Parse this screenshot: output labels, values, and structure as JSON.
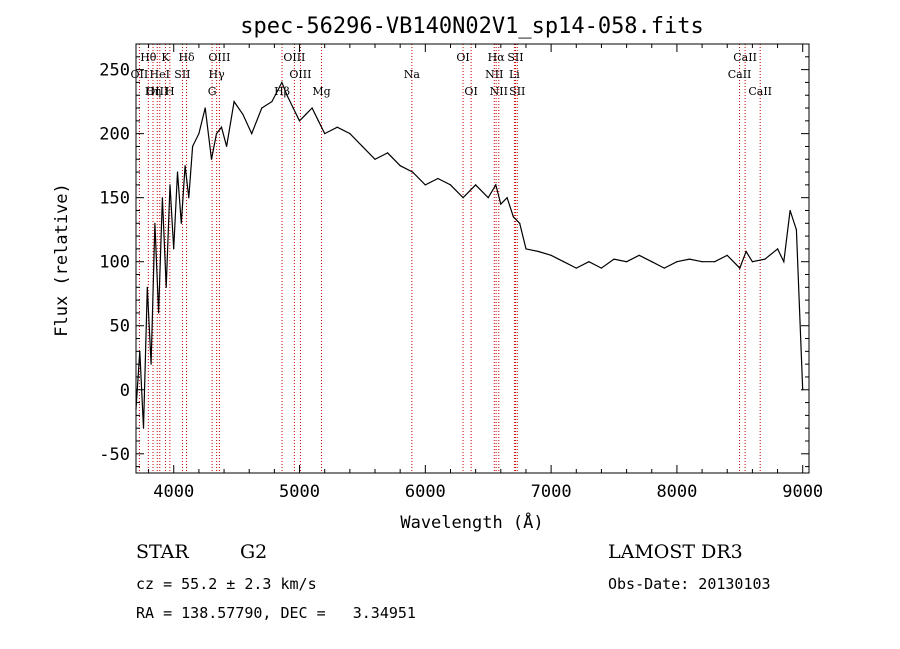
{
  "chart_data": {
    "type": "line",
    "title": "spec-56296-VB140N02V1_sp14-058.fits",
    "xlabel": "Wavelength (Å)",
    "ylabel": "Flux (relative)",
    "xlim": [
      3700,
      9050
    ],
    "ylim": [
      -65,
      270
    ],
    "x_ticks": [
      4000,
      5000,
      6000,
      7000,
      8000,
      9000
    ],
    "y_ticks": [
      -50,
      0,
      50,
      100,
      150,
      200,
      250
    ],
    "x_tick_labels": [
      "4000",
      "5000",
      "6000",
      "7000",
      "8000",
      "9000"
    ],
    "y_tick_labels": [
      "-50",
      "0",
      "50",
      "100",
      "150",
      "200",
      "250"
    ],
    "series": [
      {
        "x": [
          3700,
          3730,
          3760,
          3790,
          3820,
          3850,
          3880,
          3910,
          3940,
          3970,
          4000,
          4030,
          4060,
          4090,
          4120,
          4150,
          4200,
          4250,
          4300,
          4340,
          4380,
          4420,
          4480,
          4550,
          4620,
          4700,
          4780,
          4860,
          4900,
          4950,
          5000,
          5050,
          5100,
          5150,
          5200,
          5300,
          5400,
          5500,
          5600,
          5700,
          5800,
          5900,
          6000,
          6100,
          6200,
          6300,
          6400,
          6500,
          6560,
          6600,
          6650,
          6700,
          6750,
          6800,
          6900,
          7000,
          7100,
          7200,
          7300,
          7400,
          7500,
          7600,
          7700,
          7800,
          7900,
          8000,
          8100,
          8200,
          8300,
          8400,
          8500,
          8550,
          8600,
          8700,
          8800,
          8850,
          8900,
          8950,
          9000
        ],
        "y": [
          -15,
          30,
          -30,
          80,
          20,
          130,
          60,
          150,
          80,
          160,
          110,
          170,
          130,
          175,
          150,
          190,
          200,
          220,
          180,
          200,
          205,
          190,
          225,
          215,
          200,
          220,
          225,
          240,
          230,
          220,
          210,
          215,
          220,
          210,
          200,
          205,
          200,
          190,
          180,
          185,
          175,
          170,
          160,
          165,
          160,
          150,
          160,
          150,
          160,
          145,
          150,
          135,
          130,
          110,
          108,
          105,
          100,
          95,
          100,
          95,
          102,
          100,
          105,
          100,
          95,
          100,
          102,
          100,
          100,
          105,
          95,
          108,
          100,
          102,
          110,
          100,
          140,
          125,
          0
        ],
        "color": "#000000"
      }
    ],
    "lines_color": "#cc0000",
    "spectral_lines": [
      {
        "name": "Hθ",
        "wl": 3798,
        "row": 0
      },
      {
        "name": "OII",
        "wl": 3727,
        "row": 1
      },
      {
        "name": "OIII",
        "wl": 3869,
        "row": 2
      },
      {
        "name": "Hη",
        "wl": 3835,
        "row": 2
      },
      {
        "name": "HeI",
        "wl": 3889,
        "row": 1
      },
      {
        "name": "K",
        "wl": 3934,
        "row": 0
      },
      {
        "name": "H",
        "wl": 3969,
        "row": 2
      },
      {
        "name": "Hδ",
        "wl": 4102,
        "row": 0
      },
      {
        "name": "SII",
        "wl": 4069,
        "row": 1
      },
      {
        "name": "OIII",
        "wl": 4363,
        "row": 0
      },
      {
        "name": "Hγ",
        "wl": 4341,
        "row": 1
      },
      {
        "name": "G",
        "wl": 4305,
        "row": 2
      },
      {
        "name": "OIII",
        "wl": 4959,
        "row": 0
      },
      {
        "name": "OIII",
        "wl": 5007,
        "row": 1
      },
      {
        "name": "Hβ",
        "wl": 4861,
        "row": 2
      },
      {
        "name": "Mg",
        "wl": 5175,
        "row": 2
      },
      {
        "name": "Na",
        "wl": 5893,
        "row": 1
      },
      {
        "name": "OI",
        "wl": 6300,
        "row": 0
      },
      {
        "name": "OI",
        "wl": 6364,
        "row": 2
      },
      {
        "name": "Hα",
        "wl": 6563,
        "row": 0
      },
      {
        "name": "SII",
        "wl": 6717,
        "row": 0
      },
      {
        "name": "NII",
        "wl": 6548,
        "row": 1
      },
      {
        "name": "Li",
        "wl": 6708,
        "row": 1
      },
      {
        "name": "NII",
        "wl": 6584,
        "row": 2
      },
      {
        "name": "SII",
        "wl": 6731,
        "row": 2
      },
      {
        "name": "CaII",
        "wl": 8542,
        "row": 0
      },
      {
        "name": "CaII",
        "wl": 8498,
        "row": 1
      },
      {
        "name": "CaII",
        "wl": 8662,
        "row": 2
      }
    ]
  },
  "info": {
    "object_type": "STAR",
    "subclass": "G2",
    "survey": "LAMOST DR3",
    "redshift": "cz = 55.2 ± 2.3 km/s",
    "obs_date": "Obs-Date: 20130103",
    "coords": "RA = 138.57790, DEC =   3.34951"
  }
}
